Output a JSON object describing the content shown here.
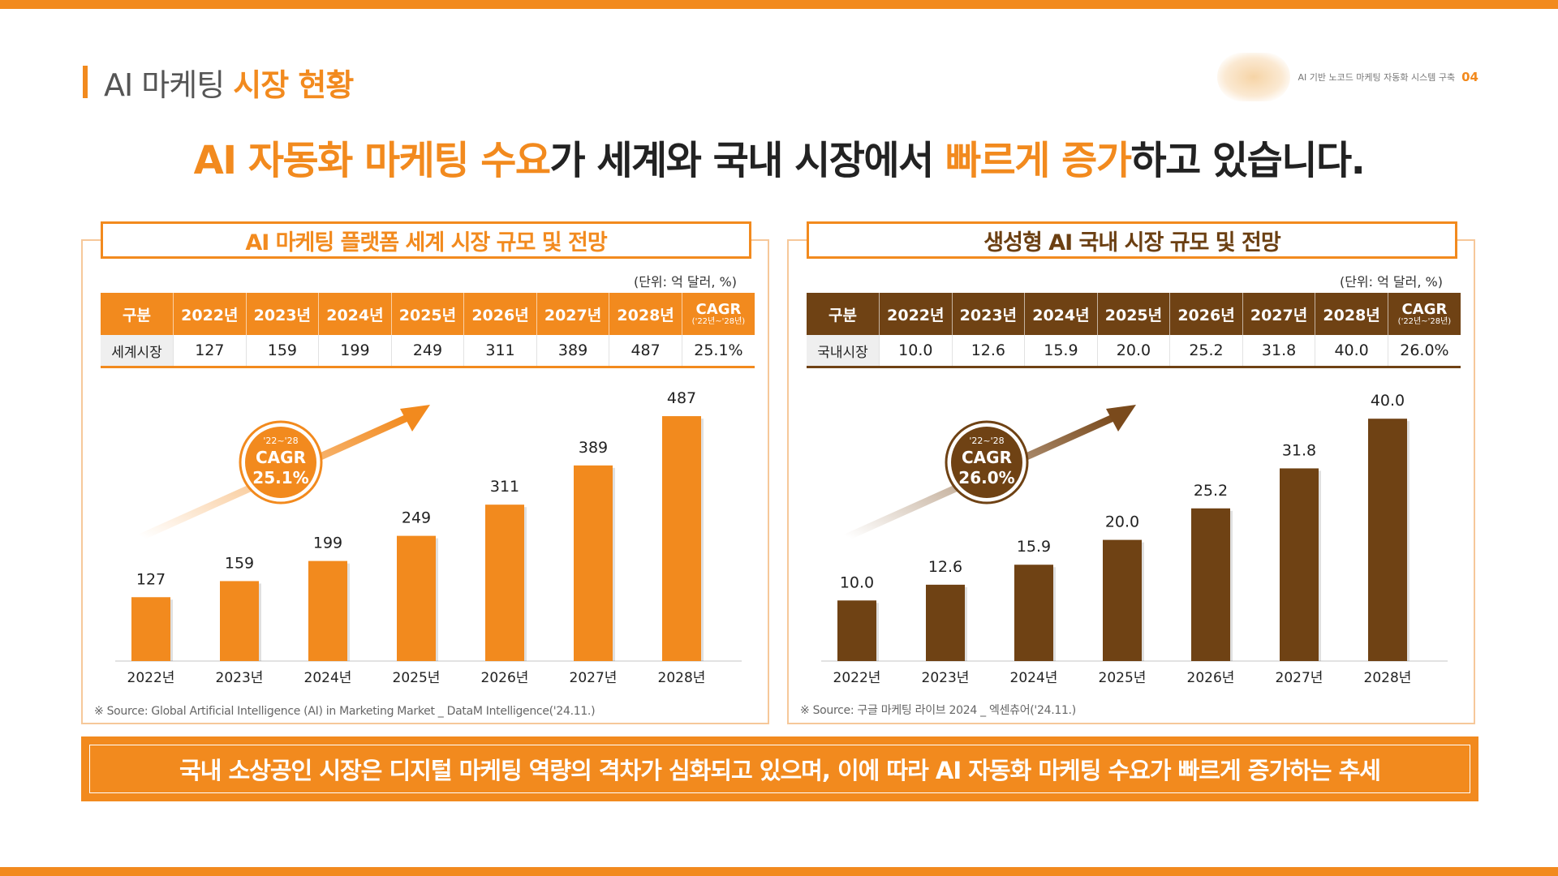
{
  "header": {
    "title_prefix": "AI 마케팅",
    "title_highlight": "시장 현황",
    "doc_title": "AI 기반 노코드 마케팅 자동화 시스템 구축",
    "page_number": "04"
  },
  "headline": {
    "p1": "AI 자동화 마케팅 수요",
    "p2": "가 세계와 국내 시장에서 ",
    "p3": "빠르게 증가",
    "p4": "하고 있습니다."
  },
  "colors": {
    "accent": "#f28a1e",
    "brown": "#6f4214"
  },
  "banner": {
    "text": "국내 소상공인 시장은 디지털 마케팅 역량의 격차가 심화되고 있으며, 이에 따라 AI 자동화 마케팅 수요가 빠르게 증가하는 추세"
  },
  "panels": [
    {
      "title": "AI 마케팅 플랫폼 세계 시장 규모 및 전망",
      "unit": "(단위: 억 달러, %)",
      "table": {
        "header_first": "구분",
        "years": [
          "2022년",
          "2023년",
          "2024년",
          "2025년",
          "2026년",
          "2027년",
          "2028년"
        ],
        "cagr_header": "CAGR",
        "cagr_sub": "('22년~'28년)",
        "row_label": "세계시장",
        "values": [
          "127",
          "159",
          "199",
          "249",
          "311",
          "389",
          "487"
        ],
        "cagr_value": "25.1%"
      },
      "badge": {
        "period": "'22~'28",
        "label": "CAGR",
        "value": "25.1%"
      },
      "source": "※ Source: Global Artificial Intelligence (AI) in Marketing Market _ DataM Intelligence('24.11.)"
    },
    {
      "title": "생성형 AI 국내 시장 규모 및 전망",
      "unit": "(단위: 억 달러, %)",
      "table": {
        "header_first": "구분",
        "years": [
          "2022년",
          "2023년",
          "2024년",
          "2025년",
          "2026년",
          "2027년",
          "2028년"
        ],
        "cagr_header": "CAGR",
        "cagr_sub": "('22년~'28년)",
        "row_label": "국내시장",
        "values": [
          "10.0",
          "12.6",
          "15.9",
          "20.0",
          "25.2",
          "31.8",
          "40.0"
        ],
        "cagr_value": "26.0%"
      },
      "badge": {
        "period": "'22~'28",
        "label": "CAGR",
        "value": "26.0%"
      },
      "source": "※ Source: 구글 마케팅 라이브 2024 _ 엑센츄어('24.11.)"
    }
  ],
  "chart_data": [
    {
      "type": "bar",
      "categories": [
        "2022년",
        "2023년",
        "2024년",
        "2025년",
        "2026년",
        "2027년",
        "2028년"
      ],
      "values": [
        127,
        159,
        199,
        249,
        311,
        389,
        487
      ],
      "data_labels": [
        "127",
        "159",
        "199",
        "249",
        "311",
        "389",
        "487"
      ],
      "title": "AI 마케팅 플랫폼 세계 시장 규모 및 전망",
      "ylim": [
        0,
        500
      ],
      "color": "#f28a1e",
      "grid": false
    },
    {
      "type": "bar",
      "categories": [
        "2022년",
        "2023년",
        "2024년",
        "2025년",
        "2026년",
        "2027년",
        "2028년"
      ],
      "values": [
        10.0,
        12.6,
        15.9,
        20.0,
        25.2,
        31.8,
        40.0
      ],
      "data_labels": [
        "10.0",
        "12.6",
        "15.9",
        "20.0",
        "25.2",
        "31.8",
        "40.0"
      ],
      "title": "생성형 AI 국내 시장 규모 및 전망",
      "ylim": [
        0,
        41.5
      ],
      "color": "#6f4214",
      "grid": false
    }
  ]
}
